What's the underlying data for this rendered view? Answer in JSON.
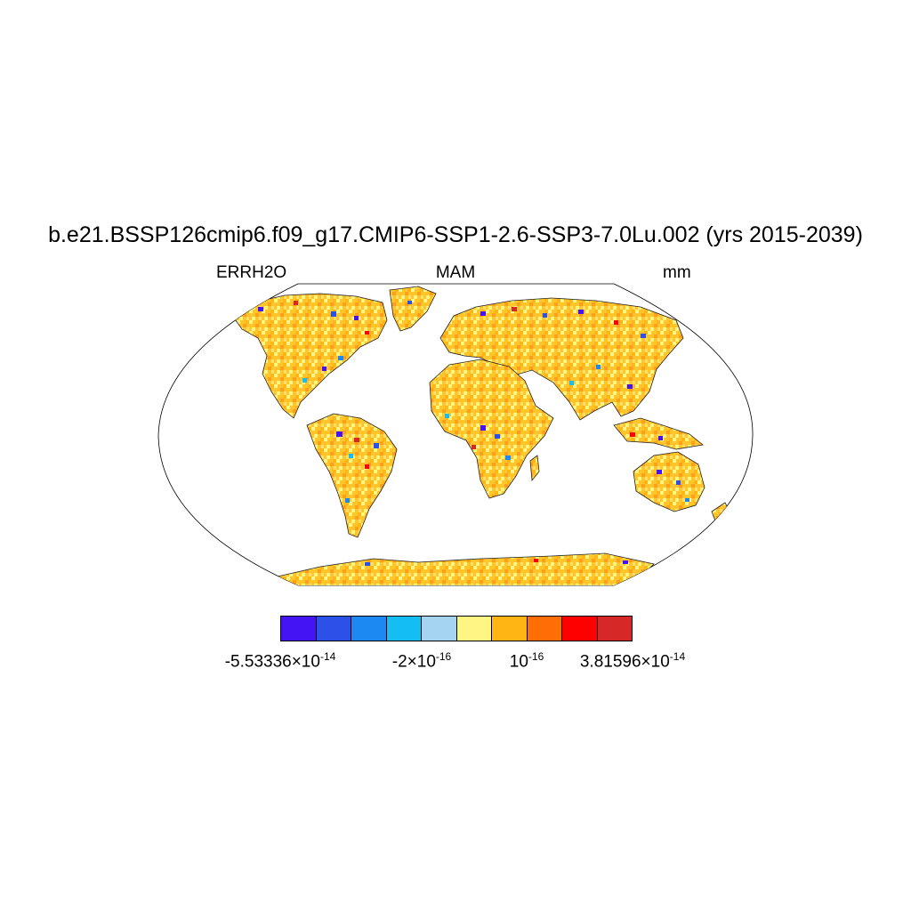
{
  "title": "b.e21.BSSP126cmip6.f09_g17.CMIP6-SSP1-2.6-SSP3-7.0Lu.002 (yrs 2015-2039)",
  "left_label": "ERRH2O",
  "center_label": "MAM",
  "right_label": "mm",
  "projection": "Robinson",
  "colorbar": {
    "colors": [
      "#4414f5",
      "#2c51e8",
      "#1c88f2",
      "#14bef5",
      "#a4d4f0",
      "#fff582",
      "#ffb514",
      "#ff6e05",
      "#ff0000",
      "#d72828"
    ],
    "labels": [
      {
        "mantissa": "-5.53336×10",
        "exp": "-14"
      },
      {
        "mantissa": "-2×10",
        "exp": "-16"
      },
      {
        "mantissa": "10",
        "exp": "-16"
      },
      {
        "mantissa": "3.81596×10",
        "exp": "-14"
      }
    ]
  }
}
